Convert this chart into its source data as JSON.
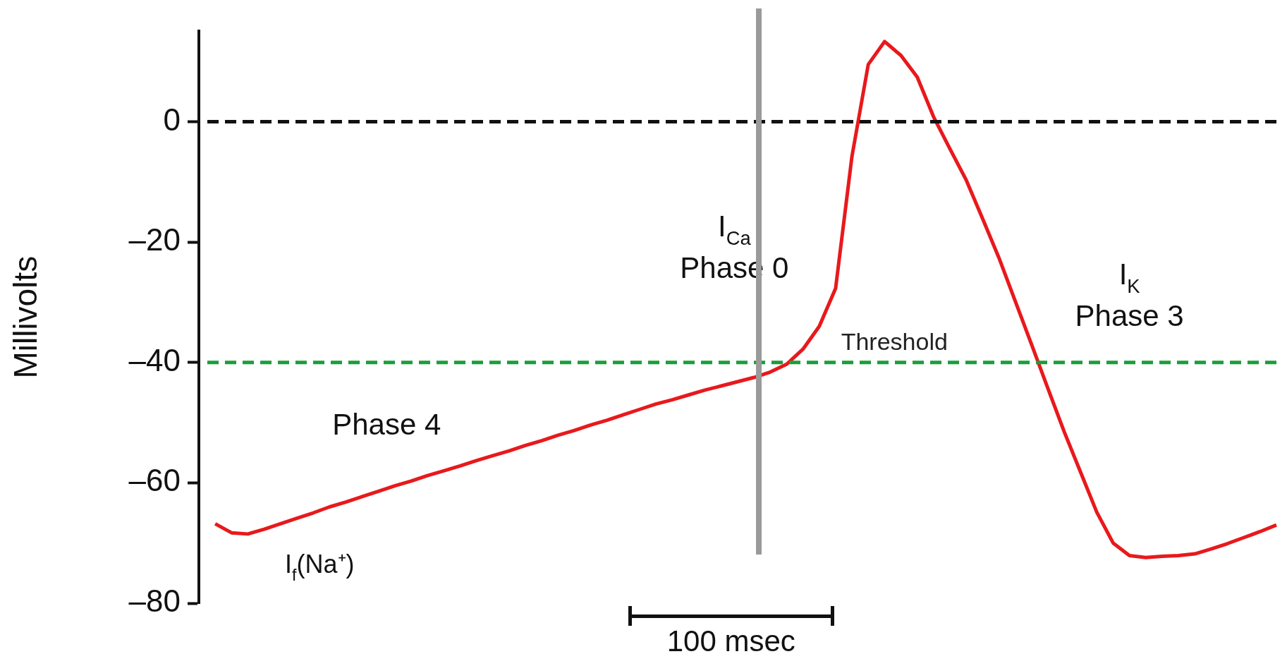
{
  "chart_data": {
    "type": "line",
    "ylabel": "Millivolts",
    "categories": [
      null,
      null,
      null,
      null,
      null,
      null,
      null,
      null,
      null,
      null,
      null,
      null,
      null,
      null,
      null,
      null,
      null,
      null,
      null,
      null,
      null,
      null,
      null,
      null,
      null,
      null,
      null,
      null,
      null,
      null,
      null,
      null,
      null,
      null,
      null,
      null,
      null,
      null,
      null,
      null,
      null,
      null,
      null,
      null,
      null,
      null,
      null,
      null,
      null,
      null,
      null,
      null,
      null,
      null,
      null,
      null,
      null,
      null,
      null,
      null,
      null,
      null,
      null,
      null,
      null,
      null,
      null
    ],
    "series": [
      {
        "color": "#e8191c",
        "values": [
          null,
          -66.8,
          -68.3,
          -68.5,
          -67.7,
          -66.8,
          -65.9,
          -65.0,
          -64.0,
          -63.2,
          -62.3,
          -61.4,
          -60.5,
          -59.7,
          -58.8,
          -58.0,
          -57.2,
          -56.3,
          -55.5,
          -54.7,
          -53.8,
          -53.0,
          -52.1,
          -51.3,
          -50.4,
          -49.6,
          -48.7,
          -47.8,
          -46.9,
          -46.2,
          -45.4,
          -44.6,
          -43.9,
          -43.2,
          -42.5,
          -41.6,
          -40.3,
          -37.8,
          -34.0,
          -27.7,
          -5.8,
          9.5,
          13.3,
          11.0,
          7.4,
          0.8,
          -4.5,
          -9.7,
          -16.1,
          -22.6,
          -29.8,
          -37.0,
          -44.3,
          -51.5,
          -58.2,
          -64.9,
          -70.0,
          -72.1,
          -72.4,
          -72.2,
          -72.1,
          -71.8,
          -71.0,
          -70.1,
          -69.1,
          -68.1,
          -67.0
        ]
      }
    ],
    "ylim": [
      -80,
      15
    ],
    "yticks": [
      {
        "value": 0,
        "label": "0"
      },
      {
        "value": -20,
        "label": "–20"
      },
      {
        "value": -40,
        "label": "–40"
      },
      {
        "value": -60,
        "label": "–60"
      },
      {
        "value": -80,
        "label": "–80"
      }
    ],
    "tick_labels": "y",
    "grid": false,
    "legend": false,
    "marker": "none",
    "line_style": "solid",
    "ref_lines": [
      {
        "axis": "y",
        "value": 0,
        "color": "#111111",
        "line_style": "dashed"
      },
      {
        "axis": "y",
        "value": -40,
        "label": "Threshold",
        "color": "#1a9e3a",
        "line_style": "dashed"
      }
    ],
    "annotations": [
      "Phase 4",
      "I$_{f}$(Na⁺)",
      "I$_{Ca}$",
      "Phase 0",
      "I$_{K}$",
      "Phase 3",
      "100 msec"
    ]
  }
}
